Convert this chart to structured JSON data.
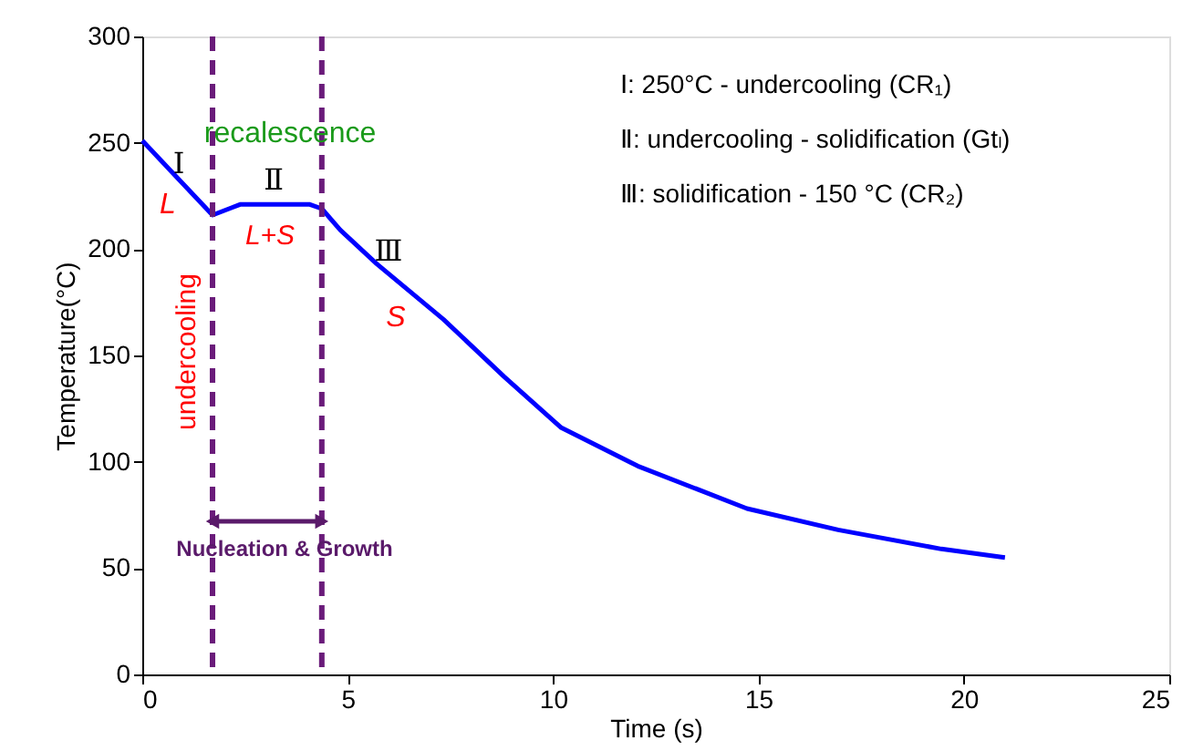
{
  "chart_data": {
    "type": "line",
    "xlabel": "Time (s)",
    "ylabel": "Temperature(°C)",
    "series": [
      {
        "color": "#0000ff",
        "x": [
          0,
          0.83,
          1.71,
          2.38,
          4.08,
          4.37,
          4.82,
          5.71,
          7.33,
          8.81,
          10.2,
          12.06,
          14.72,
          16.94,
          19.45,
          21.0
        ],
        "values": [
          251,
          234,
          216,
          221,
          221,
          219,
          209,
          193,
          167,
          140,
          116,
          98,
          78,
          68,
          59,
          55
        ]
      }
    ],
    "xlim": [
      0,
      25
    ],
    "xticks": [
      0,
      5,
      10,
      15,
      20,
      25
    ],
    "ylim": [
      0,
      300
    ],
    "yticks": [
      0,
      50,
      100,
      150,
      200,
      250,
      300
    ],
    "grid": false,
    "marker": "none",
    "line_style": "solid",
    "ref_lines": [
      {
        "axis": "x",
        "value": 1.71,
        "color": "#6a1b7a",
        "line_style": "dashed"
      },
      {
        "axis": "x",
        "value": 4.37,
        "color": "#6a1b7a",
        "line_style": "dashed"
      }
    ],
    "annotations": [
      "Ⅰ: 250°C - undercooling (CR₁)",
      "Ⅱ: undercooling - solidification (Gtₗ)",
      "Ⅲ: solidification - 150 °C (CR₂)",
      "Ⅰ",
      "L",
      "recalescence",
      "Ⅱ",
      "L+S",
      "Ⅲ",
      "S",
      "undercooling",
      "Nucleation & Growth"
    ]
  }
}
